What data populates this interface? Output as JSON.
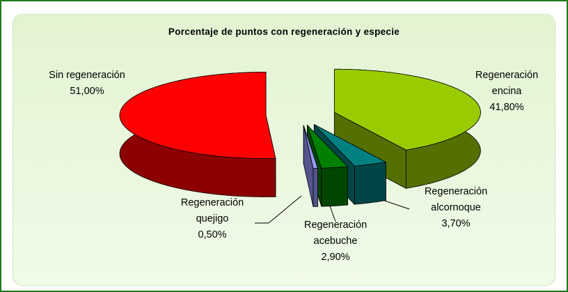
{
  "chart_data": {
    "type": "pie3d",
    "title": "Porcentaje de puntos con regeneración y especie",
    "categories": [
      "Sin regeneración",
      "Regeneración encina",
      "Regeneración alcornoque",
      "Regeneración acebuche",
      "Regeneración quejigo"
    ],
    "values": [
      51,
      41.8,
      3.7,
      2.9,
      0.5
    ],
    "value_labels": [
      "51,00%",
      "41,80%",
      "3,70%",
      "2,90%",
      "0,50%"
    ],
    "colors": [
      "#ff0000",
      "#99cc00",
      "#008080",
      "#008000",
      "#9999ff"
    ]
  }
}
